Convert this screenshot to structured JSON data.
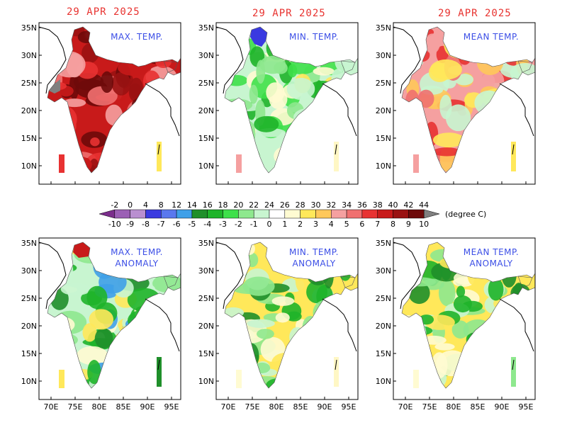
{
  "dates": [
    "29 APR 2025",
    "29 APR 2025",
    "29 APR 2025"
  ],
  "panels": [
    {
      "id": "max-temp",
      "title": [
        "MAX. TEMP."
      ],
      "kind": "abs"
    },
    {
      "id": "min-temp",
      "title": [
        "MIN. TEMP."
      ],
      "kind": "abs"
    },
    {
      "id": "mean-temp",
      "title": [
        "MEAN TEMP."
      ],
      "kind": "abs"
    },
    {
      "id": "max-temp-anomaly",
      "title": [
        "MAX. TEMP.",
        "ANOMALY"
      ],
      "kind": "anom"
    },
    {
      "id": "min-temp-anomaly",
      "title": [
        "MIN. TEMP.",
        "ANOMALY"
      ],
      "kind": "anom"
    },
    {
      "id": "mean-temp-anomaly",
      "title": [
        "MEAN TEMP.",
        "ANOMALY"
      ],
      "kind": "anom"
    }
  ],
  "axes": {
    "x_ticks": [
      "70E",
      "75E",
      "80E",
      "85E",
      "90E",
      "95E"
    ],
    "y_ticks": [
      "10N",
      "15N",
      "20N",
      "25N",
      "30N",
      "35N"
    ]
  },
  "colorbar": {
    "temperature_labels": [
      "-2",
      "0",
      "4",
      "8",
      "12",
      "14",
      "16",
      "18",
      "20",
      "22",
      "24",
      "26",
      "28",
      "30",
      "32",
      "34",
      "36",
      "38",
      "40",
      "42",
      "44"
    ],
    "anomaly_labels": [
      "-10",
      "-9",
      "-8",
      "-7",
      "-6",
      "-5",
      "-4",
      "-3",
      "-2",
      "-1",
      "0",
      "1",
      "2",
      "3",
      "4",
      "5",
      "6",
      "7",
      "8",
      "9",
      "10"
    ],
    "colors": [
      "#7b2d8c",
      "#9b5fb5",
      "#b98fd0",
      "#3a3ae0",
      "#5a78ee",
      "#3fa0e8",
      "#1f8f2a",
      "#1fb42a",
      "#3ee04a",
      "#8ee88e",
      "#c8f5d0",
      "#ffffff",
      "#fffbd2",
      "#ffe85a",
      "#ffc85a",
      "#f5a0a0",
      "#f07070",
      "#e83232",
      "#c81a1a",
      "#9a1212",
      "#6e0a0a",
      "#808080"
    ],
    "unit": "(degree C)"
  }
}
